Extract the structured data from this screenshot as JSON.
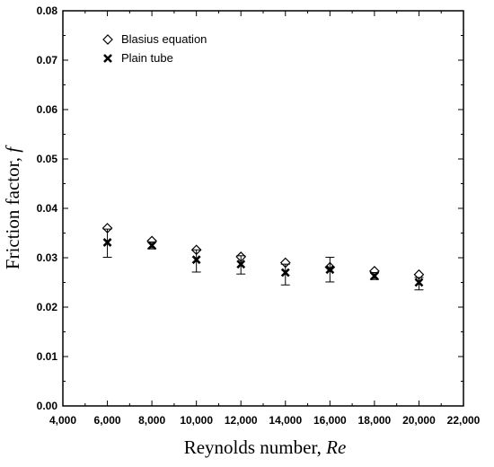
{
  "chart_data": {
    "type": "scatter",
    "xlabel": "Reynolds number, ",
    "xlabel_italic": "Re",
    "ylabel": "Friction factor, ",
    "ylabel_italic": "f",
    "xlim": [
      4000,
      22000
    ],
    "ylim": [
      0,
      0.08
    ],
    "xticks": [
      "4,000",
      "6,000",
      "8,000",
      "10,000",
      "12,000",
      "14,000",
      "16,000",
      "18,000",
      "20,000",
      "22,000"
    ],
    "yticks": [
      "0.00",
      "0.01",
      "0.02",
      "0.03",
      "0.04",
      "0.05",
      "0.06",
      "0.07",
      "0.08"
    ],
    "grid": false,
    "legend_position": "top-left",
    "series": [
      {
        "name": "Blasius equation",
        "marker": "diamond-open",
        "x": [
          6000,
          8000,
          10000,
          12000,
          14000,
          16000,
          18000,
          20000
        ],
        "y": [
          0.036,
          0.0334,
          0.0316,
          0.0302,
          0.029,
          0.0281,
          0.0273,
          0.0266
        ]
      },
      {
        "name": "Plain tube",
        "marker": "x",
        "x": [
          6000,
          8000,
          10000,
          12000,
          14000,
          16000,
          18000,
          20000
        ],
        "y": [
          0.0331,
          0.0325,
          0.0296,
          0.0287,
          0.027,
          0.0276,
          0.0263,
          0.025
        ],
        "err_low": [
          0.003,
          0.0007,
          0.0025,
          0.002,
          0.0025,
          0.0025,
          0.0007,
          0.0015
        ],
        "err_high": [
          0.0027,
          0.0007,
          0.002,
          0.0017,
          0.0017,
          0.0025,
          0.0007,
          0.001
        ]
      }
    ]
  }
}
